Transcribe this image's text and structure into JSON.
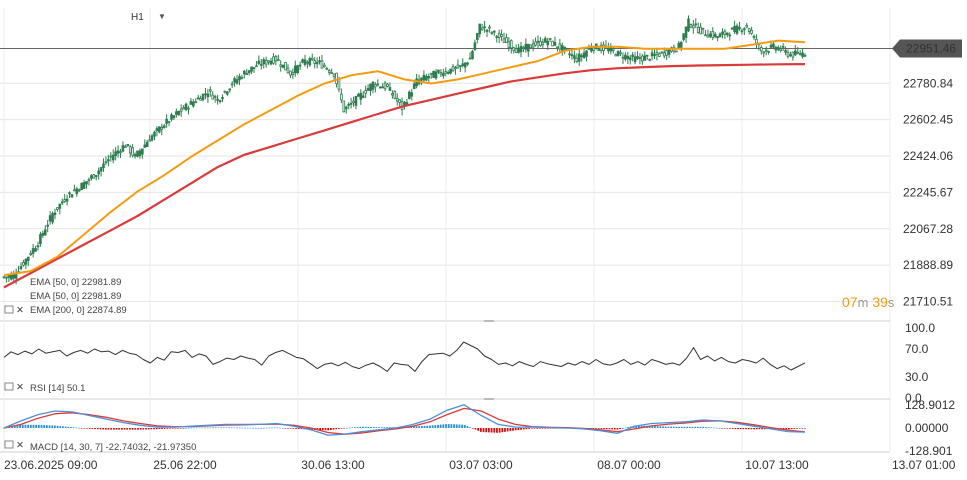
{
  "toolbar": {
    "timeframe": "H1"
  },
  "countdown": {
    "minutes": "07",
    "m_unit": "m",
    "seconds": "39",
    "s_unit": "s"
  },
  "colors": {
    "ema50": "#f39c12",
    "ema200": "#d93a3a",
    "candle": "#2e7d4f",
    "rsi": "#333333",
    "macd_fast": "#4a90d9",
    "macd_slow": "#d93a3a",
    "hist_pos": "#2a8fd6",
    "hist_neg": "#cc1111",
    "price_badge": "#555555"
  },
  "chart_data": [
    {
      "type": "candlestick",
      "panel": "price",
      "ylim": [
        21620,
        23150
      ],
      "y_ticks": [
        "22951.46",
        "22780.84",
        "22602.45",
        "22424.06",
        "22245.67",
        "22067.28",
        "21888.89",
        "21710.51"
      ],
      "current_price": "22951.46",
      "x_ticks": [
        "23.06.2025  09:00",
        "25.06  22:00",
        "30.06  13:00",
        "03.07  03:00",
        "08.07  00:00",
        "10.07  13:00",
        "13.07  01:00"
      ],
      "legend": [
        {
          "label": "EMA [50, 0]",
          "value": "22981.89",
          "name": "icons-hidden"
        },
        {
          "label": "EMA [50, 0]",
          "value": "22981.89"
        },
        {
          "label": "EMA [200, 0]",
          "value": "22874.89"
        }
      ],
      "close_path": [
        [
          0,
          21830
        ],
        [
          4,
          21840
        ],
        [
          8,
          21900
        ],
        [
          14,
          22000
        ],
        [
          20,
          22140
        ],
        [
          26,
          22230
        ],
        [
          32,
          22280
        ],
        [
          38,
          22340
        ],
        [
          44,
          22420
        ],
        [
          50,
          22480
        ],
        [
          54,
          22420
        ],
        [
          60,
          22510
        ],
        [
          66,
          22580
        ],
        [
          72,
          22640
        ],
        [
          78,
          22690
        ],
        [
          84,
          22740
        ],
        [
          88,
          22700
        ],
        [
          94,
          22780
        ],
        [
          100,
          22840
        ],
        [
          106,
          22880
        ],
        [
          112,
          22900
        ],
        [
          118,
          22830
        ],
        [
          124,
          22890
        ],
        [
          130,
          22880
        ],
        [
          136,
          22830
        ],
        [
          140,
          22650
        ],
        [
          146,
          22710
        ],
        [
          152,
          22780
        ],
        [
          158,
          22760
        ],
        [
          164,
          22660
        ],
        [
          170,
          22790
        ],
        [
          176,
          22820
        ],
        [
          182,
          22840
        ],
        [
          188,
          22860
        ],
        [
          192,
          22900
        ],
        [
          196,
          23060
        ],
        [
          200,
          23040
        ],
        [
          206,
          22990
        ],
        [
          212,
          22940
        ],
        [
          218,
          22970
        ],
        [
          224,
          22990
        ],
        [
          230,
          22950
        ],
        [
          236,
          22900
        ],
        [
          242,
          22960
        ],
        [
          248,
          22950
        ],
        [
          254,
          22920
        ],
        [
          260,
          22900
        ],
        [
          266,
          22910
        ],
        [
          272,
          22930
        ],
        [
          278,
          22960
        ],
        [
          282,
          23080
        ],
        [
          288,
          23030
        ],
        [
          294,
          23010
        ],
        [
          300,
          23040
        ],
        [
          306,
          23060
        ],
        [
          312,
          22940
        ],
        [
          318,
          22960
        ],
        [
          324,
          22920
        ],
        [
          330,
          22930
        ]
      ],
      "series": [
        {
          "name": "EMA [50, 0]",
          "y": [
            21840,
            21860,
            21930,
            22040,
            22150,
            22250,
            22330,
            22420,
            22500,
            22580,
            22650,
            22720,
            22780,
            22820,
            22840,
            22800,
            22780,
            22800,
            22830,
            22860,
            22890,
            22940,
            22960,
            22960,
            22950,
            22950,
            22950,
            22950,
            22970,
            22990,
            22981.89
          ]
        },
        {
          "name": "EMA [200, 0]",
          "y": [
            21780,
            21850,
            21920,
            21990,
            22060,
            22130,
            22210,
            22290,
            22370,
            22430,
            22470,
            22510,
            22550,
            22590,
            22630,
            22670,
            22700,
            22730,
            22760,
            22790,
            22810,
            22830,
            22845,
            22855,
            22860,
            22865,
            22868,
            22870,
            22872,
            22874,
            22874.89
          ]
        }
      ]
    },
    {
      "type": "line",
      "panel": "rsi",
      "name": "RSI [14]",
      "value": "50.1",
      "ylim": [
        0,
        100
      ],
      "y_ticks": [
        "100.0",
        "70.0",
        "30.0",
        "0.0"
      ],
      "reference_lines": [
        70,
        30
      ],
      "y": [
        58,
        66,
        62,
        67,
        63,
        70,
        64,
        66,
        68,
        60,
        65,
        68,
        64,
        70,
        66,
        67,
        62,
        68,
        64,
        62,
        55,
        50,
        58,
        54,
        66,
        65,
        68,
        58,
        63,
        60,
        48,
        52,
        57,
        55,
        60,
        57,
        55,
        47,
        60,
        65,
        68,
        63,
        58,
        56,
        49,
        42,
        48,
        50,
        46,
        51,
        45,
        42,
        47,
        50,
        45,
        38,
        50,
        48,
        47,
        38,
        52,
        62,
        63,
        64,
        60,
        68,
        80,
        75,
        70,
        60,
        55,
        48,
        50,
        46,
        52,
        48,
        45,
        52,
        49,
        47,
        45,
        50,
        47,
        52,
        48,
        55,
        49,
        47,
        50,
        55,
        48,
        52,
        47,
        55,
        52,
        48,
        50,
        47,
        57,
        72,
        55,
        60,
        53,
        58,
        52,
        50,
        55,
        53,
        50,
        57,
        48,
        42,
        46,
        40,
        45,
        50.1
      ]
    },
    {
      "type": "line",
      "panel": "macd",
      "name": "MACD [14, 30, 7]",
      "values": [
        "-22.74032",
        "-21.97350"
      ],
      "ylim": [
        -128.901,
        128.9012
      ],
      "y_ticks": [
        "128.9012",
        "0.00000",
        "-128.901"
      ],
      "series": [
        {
          "name": "fast",
          "y": [
            0,
            40,
            75,
            95,
            90,
            70,
            50,
            30,
            15,
            5,
            5,
            10,
            15,
            20,
            20,
            20,
            25,
            10,
            -10,
            -40,
            -35,
            -20,
            -10,
            0,
            20,
            50,
            100,
            130,
            70,
            20,
            5,
            5,
            2,
            0,
            -5,
            -15,
            -30,
            10,
            25,
            30,
            35,
            45,
            40,
            25,
            10,
            -5,
            -20,
            -22.74032
          ]
        },
        {
          "name": "signal",
          "y": [
            0,
            20,
            55,
            80,
            85,
            75,
            60,
            40,
            25,
            12,
            8,
            8,
            12,
            16,
            18,
            20,
            22,
            15,
            0,
            -25,
            -35,
            -28,
            -15,
            -5,
            10,
            35,
            75,
            110,
            95,
            50,
            20,
            8,
            4,
            2,
            -2,
            -10,
            -20,
            -5,
            12,
            22,
            28,
            38,
            40,
            32,
            18,
            2,
            -12,
            -21.9735
          ]
        }
      ]
    }
  ]
}
